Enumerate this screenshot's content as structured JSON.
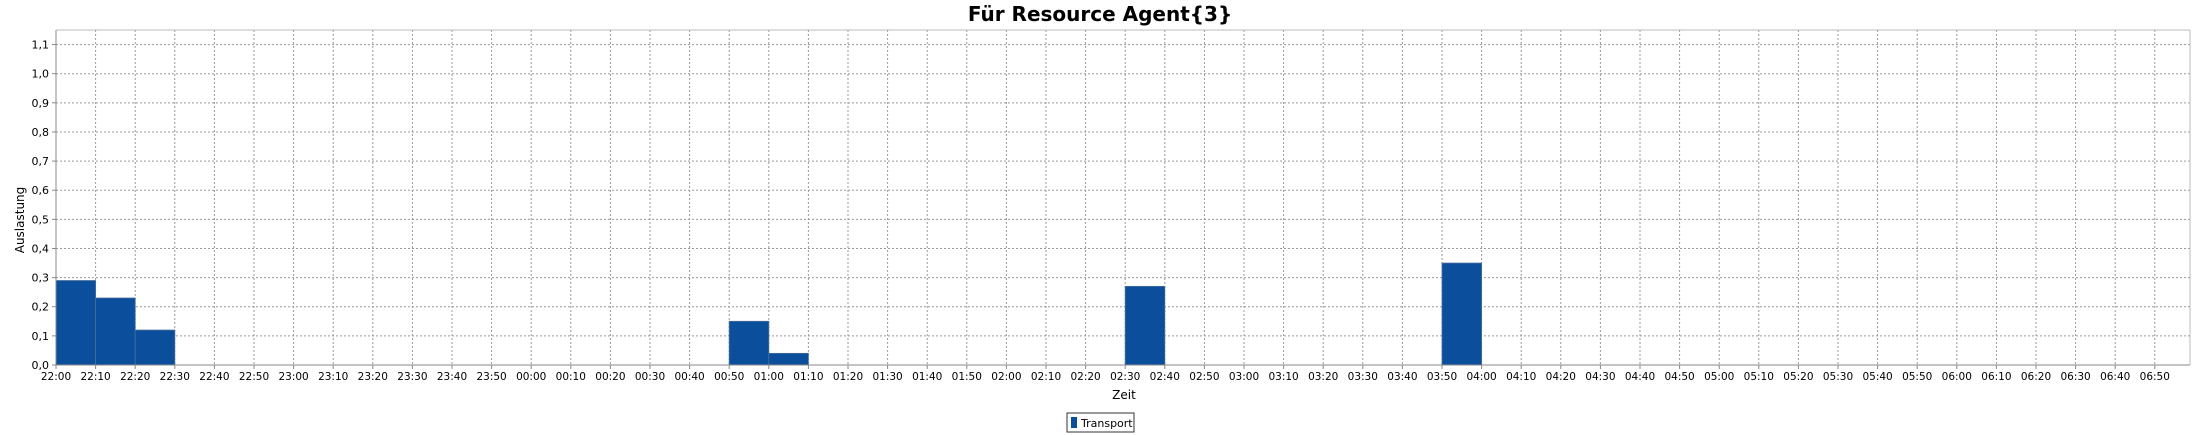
{
  "chart_data": {
    "type": "bar",
    "title": "Für Resource Agent{3}",
    "xlabel": "Zeit",
    "ylabel": "Auslastung",
    "ylim": [
      0,
      1.15
    ],
    "grid": true,
    "legend": "bottom-center",
    "x_ticks": [
      "22:00",
      "22:10",
      "22:20",
      "22:30",
      "22:40",
      "22:50",
      "23:00",
      "23:10",
      "23:20",
      "23:30",
      "23:40",
      "23:50",
      "00:00",
      "00:10",
      "00:20",
      "00:30",
      "00:40",
      "00:50",
      "01:00",
      "01:10",
      "01:20",
      "01:30",
      "01:40",
      "01:50",
      "02:00",
      "02:10",
      "02:20",
      "02:30",
      "02:40",
      "02:50",
      "03:00",
      "03:10",
      "03:20",
      "03:30",
      "03:40",
      "03:50",
      "04:00",
      "04:10",
      "04:20",
      "04:30",
      "04:40",
      "04:50",
      "05:00",
      "05:10",
      "05:20",
      "05:30",
      "05:40",
      "05:50",
      "06:00",
      "06:10",
      "06:20",
      "06:30",
      "06:40",
      "06:50"
    ],
    "y_ticks": [
      "0,0",
      "0,1",
      "0,2",
      "0,3",
      "0,4",
      "0,5",
      "0,6",
      "0,7",
      "0,8",
      "0,9",
      "1,0",
      "1,1"
    ],
    "series": [
      {
        "name": "Transport",
        "color": "#0b4f9c",
        "bars": [
          {
            "start": "22:00",
            "end": "22:10",
            "value": 0.29
          },
          {
            "start": "22:10",
            "end": "22:20",
            "value": 0.23
          },
          {
            "start": "22:20",
            "end": "22:30",
            "value": 0.12
          },
          {
            "start": "00:50",
            "end": "01:00",
            "value": 0.15
          },
          {
            "start": "01:00",
            "end": "01:10",
            "value": 0.04
          },
          {
            "start": "02:30",
            "end": "02:40",
            "value": 0.27
          },
          {
            "start": "03:50",
            "end": "04:00",
            "value": 0.35
          }
        ]
      }
    ]
  }
}
